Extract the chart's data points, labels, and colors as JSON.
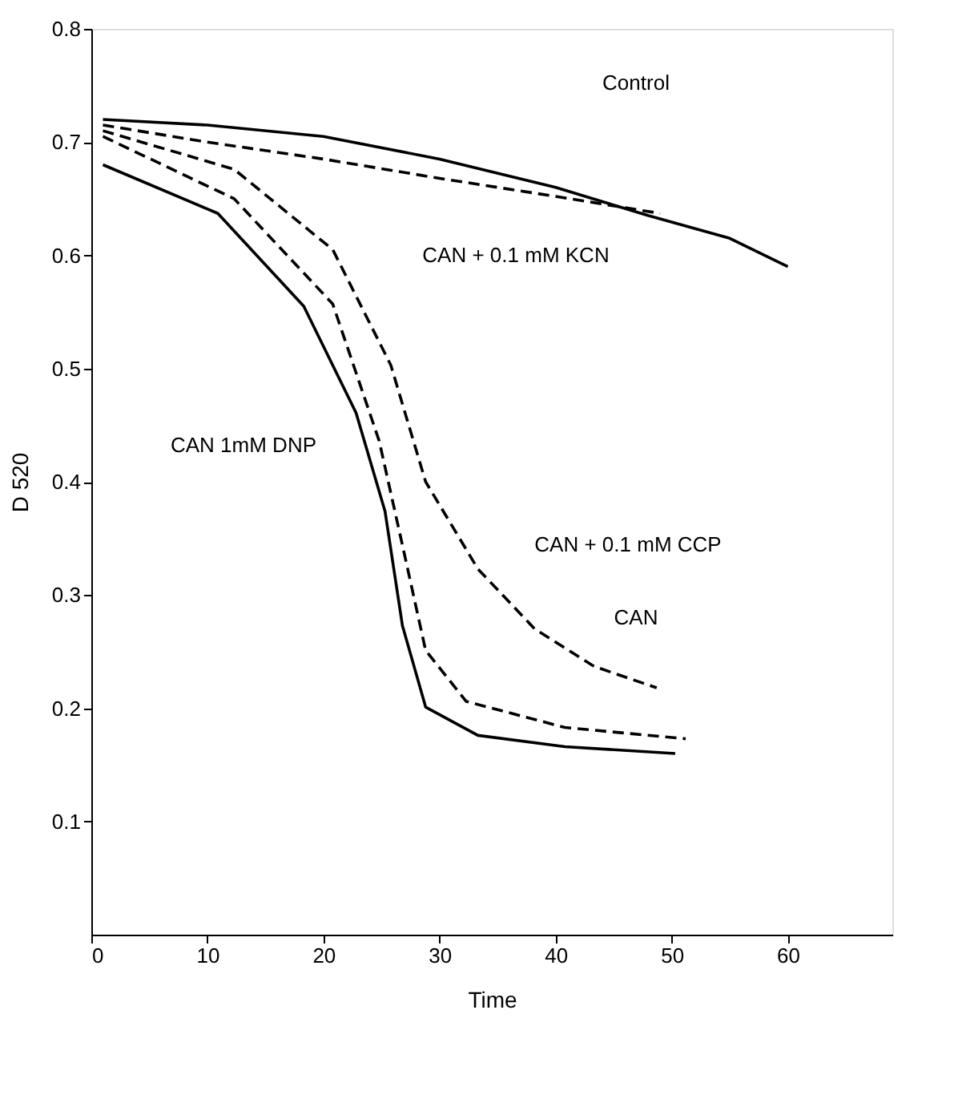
{
  "chart_data": {
    "type": "line",
    "xlabel": "Time",
    "ylabel": "D 520",
    "xlim": [
      0,
      69
    ],
    "ylim": [
      0,
      0.8
    ],
    "xticks": [
      0,
      10,
      20,
      30,
      40,
      50,
      60
    ],
    "yticks": [
      0.1,
      0.2,
      0.3,
      0.4,
      0.5,
      0.6,
      0.7,
      0.8
    ],
    "grid": false,
    "marker": "none",
    "series": [
      {
        "color": "#000000",
        "line_style": "solid",
        "x": [
          1,
          10,
          20,
          30,
          40,
          48,
          55,
          60
        ],
        "values": [
          0.72,
          0.715,
          0.705,
          0.685,
          0.66,
          0.635,
          0.615,
          0.59
        ]
      },
      {
        "color": "#000000",
        "line_style": "dashed",
        "x": [
          1,
          10,
          20,
          30,
          40,
          49
        ],
        "values": [
          0.715,
          0.7,
          0.685,
          0.668,
          0.652,
          0.637
        ]
      },
      {
        "color": "#000000",
        "line_style": "dashed",
        "x": [
          1,
          12.3,
          20.8,
          25.8,
          28.8,
          33.3,
          38.2,
          43.3,
          48.7
        ],
        "values": [
          0.71,
          0.676,
          0.605,
          0.503,
          0.4,
          0.323,
          0.27,
          0.237,
          0.218
        ]
      },
      {
        "color": "#000000",
        "line_style": "dashed",
        "x": [
          1,
          12.3,
          20.8,
          24.8,
          26.8,
          28.8,
          32.3,
          40.8,
          51.2
        ],
        "values": [
          0.705,
          0.65,
          0.557,
          0.436,
          0.344,
          0.251,
          0.206,
          0.183,
          0.173
        ]
      },
      {
        "color": "#000000",
        "line_style": "solid",
        "x": [
          1,
          10.9,
          18.3,
          22.8,
          25.3,
          26.8,
          28.8,
          33.3,
          40.8,
          50.3
        ],
        "values": [
          0.68,
          0.637,
          0.555,
          0.461,
          0.374,
          0.273,
          0.201,
          0.176,
          0.166,
          0.16
        ]
      }
    ],
    "annotations": [
      "Control",
      "CAN + 0.1 mM KCN",
      "CAN 1mM DNP",
      "CAN + 0.1 mM CCP",
      "CAN"
    ]
  }
}
